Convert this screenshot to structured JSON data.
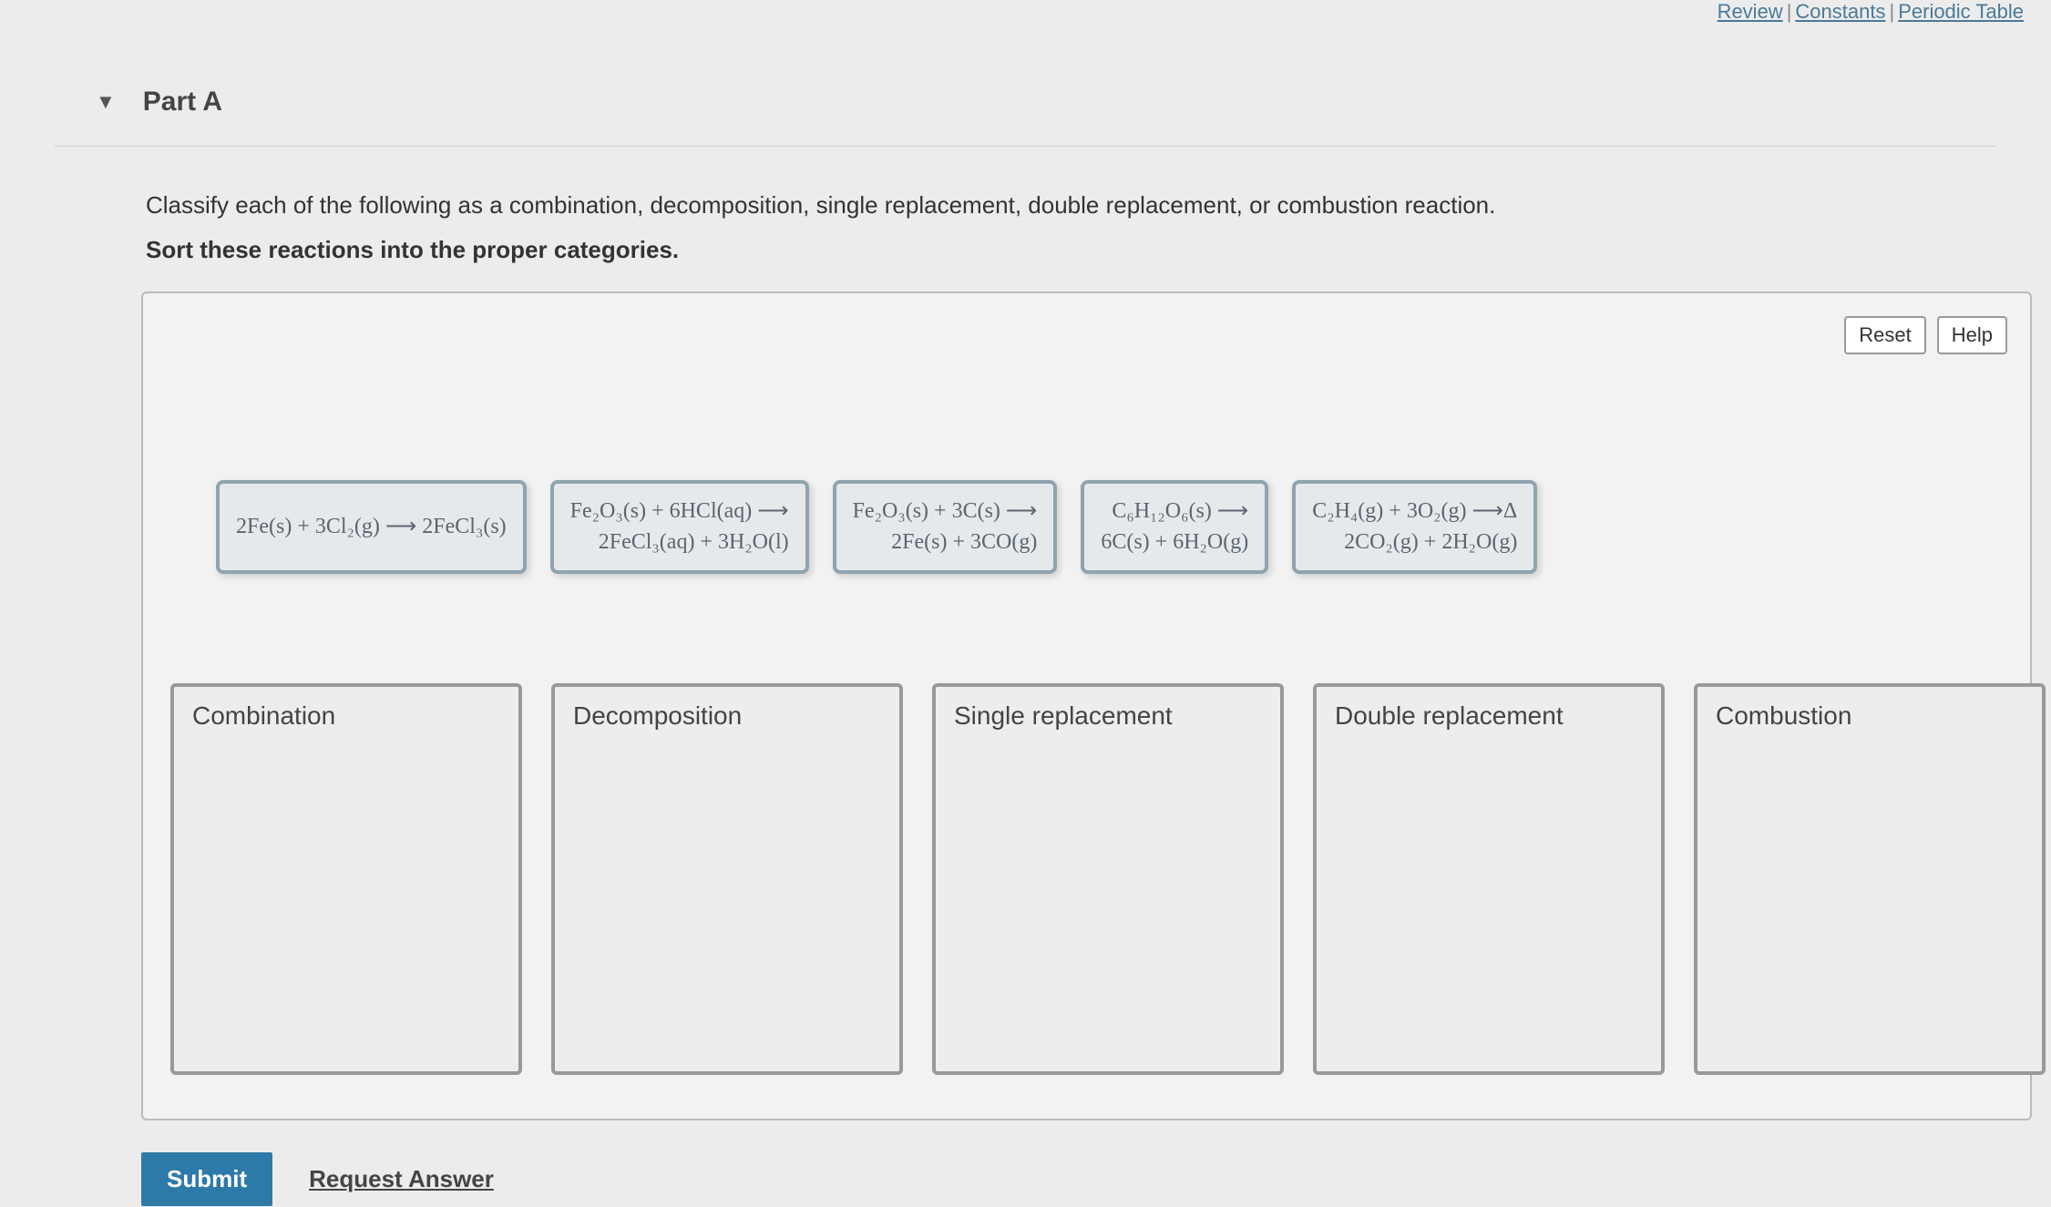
{
  "header": {
    "review": "Review",
    "constants": "Constants",
    "periodic": "Periodic Table"
  },
  "part": {
    "title": "Part A"
  },
  "instructions": {
    "line1": "Classify each of the following as a combination, decomposition, single replacement, double replacement, or combustion reaction.",
    "line2": "Sort these reactions into the proper categories."
  },
  "workspace_buttons": {
    "reset": "Reset",
    "help": "Help"
  },
  "reactions": [
    {
      "line1": "2Fe(s) + 3Cl₂(g) ⟶ 2FeCl₃(s)",
      "line2": ""
    },
    {
      "line1": "Fe₂O₃(s) + 6HCl(aq) ⟶",
      "line2": "2FeCl₃(aq) + 3H₂O(l)"
    },
    {
      "line1": "Fe₂O₃(s) + 3C(s) ⟶",
      "line2": "2Fe(s) + 3CO(g)"
    },
    {
      "line1": "C₆H₁₂O₆(s) ⟶",
      "line2": "6C(s) + 6H₂O(g)"
    },
    {
      "line1": "C₂H₄(g) + 3O₂(g) ⟶Δ",
      "line2": "2CO₂(g) + 2H₂O(g)"
    }
  ],
  "bins": [
    {
      "label": "Combination"
    },
    {
      "label": "Decomposition"
    },
    {
      "label": "Single replacement"
    },
    {
      "label": "Double replacement"
    },
    {
      "label": "Combustion"
    }
  ],
  "footer": {
    "submit": "Submit",
    "request": "Request Answer"
  },
  "styling": {
    "tile_border_color": "#8fa3b0",
    "tile_bg_color": "#e6e9eb",
    "bin_border_color": "#999999",
    "submit_bg": "#2d7aa8",
    "body_bg": "#ececec",
    "workspace_bg": "#f2f2f2"
  }
}
